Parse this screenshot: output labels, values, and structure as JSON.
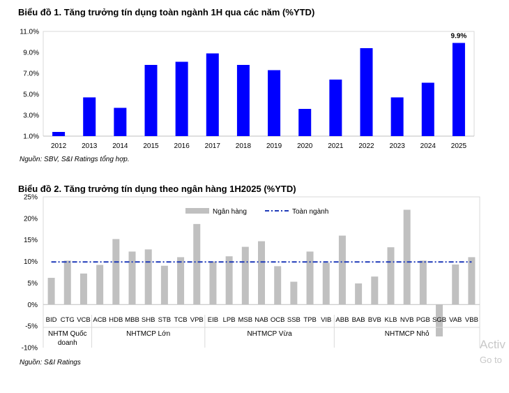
{
  "chart1": {
    "title": "Biểu đồ 1. Tăng trưởng tín dụng toàn ngành 1H qua các năm (%YTD)",
    "source": "Nguồn: SBV, S&I Ratings tổng hợp.",
    "bar_color": "#0000ff",
    "highlight_label": "9.9%"
  },
  "chart2": {
    "title": "Biểu đồ 2. Tăng trưởng tín dụng theo ngân hàng 1H2025 (%YTD)",
    "source": "Nguồn: S&I Ratings",
    "bar_color": "#c0c0c0",
    "line_color": "#1f3ab8",
    "legend_bank": "Ngân hàng",
    "legend_total": "Toàn ngành",
    "group_labels": [
      "NHTM Quốc doanh",
      "NHTMCP Lớn",
      "NHTMCP Vừa",
      "NHTMCP Nhỏ"
    ]
  },
  "watermark": {
    "line1": "Activ",
    "line2": "Go to"
  },
  "chart_data": [
    {
      "type": "bar",
      "categories": [
        "2012",
        "2013",
        "2014",
        "2015",
        "2016",
        "2017",
        "2018",
        "2019",
        "2020",
        "2021",
        "2022",
        "2023",
        "2024",
        "2025"
      ],
      "values": [
        1.4,
        4.7,
        3.7,
        7.8,
        8.1,
        8.9,
        7.8,
        7.3,
        3.6,
        6.4,
        9.4,
        4.7,
        6.1,
        9.9
      ],
      "yticks": [
        "1.0%",
        "3.0%",
        "5.0%",
        "7.0%",
        "9.0%",
        "11.0%"
      ],
      "ylim": [
        1,
        11
      ],
      "grid": false
    },
    {
      "type": "bar",
      "categories": [
        "BID",
        "CTG",
        "VCB",
        "ACB",
        "HDB",
        "MBB",
        "SHB",
        "STB",
        "TCB",
        "VPB",
        "EIB",
        "LPB",
        "MSB",
        "NAB",
        "OCB",
        "SSB",
        "TPB",
        "VIB",
        "ABB",
        "BAB",
        "BVB",
        "KLB",
        "NVB",
        "PGB",
        "SGB",
        "VAB",
        "VBB"
      ],
      "series": [
        {
          "name": "Ngân hàng",
          "values": [
            6.2,
            10.2,
            7.2,
            9.2,
            15.2,
            12.3,
            12.8,
            9.0,
            11.0,
            18.7,
            10.0,
            11.2,
            13.4,
            14.7,
            8.9,
            5.3,
            12.3,
            9.7,
            16.0,
            4.9,
            6.5,
            13.3,
            22.0,
            10.2,
            -7.4,
            9.3,
            11.0
          ]
        },
        {
          "name": "Toàn ngành",
          "values": [
            9.9,
            9.9,
            9.9,
            9.9,
            9.9,
            9.9,
            9.9,
            9.9,
            9.9,
            9.9,
            9.9,
            9.9,
            9.9,
            9.9,
            9.9,
            9.9,
            9.9,
            9.9,
            9.9,
            9.9,
            9.9,
            9.9,
            9.9,
            9.9,
            9.9,
            9.9,
            9.9
          ]
        }
      ],
      "yticks": [
        "-10%",
        "-5%",
        "0%",
        "5%",
        "10%",
        "15%",
        "20%",
        "25%"
      ],
      "ylim": [
        -10,
        25
      ],
      "legend_position": "top",
      "grid": false
    }
  ]
}
